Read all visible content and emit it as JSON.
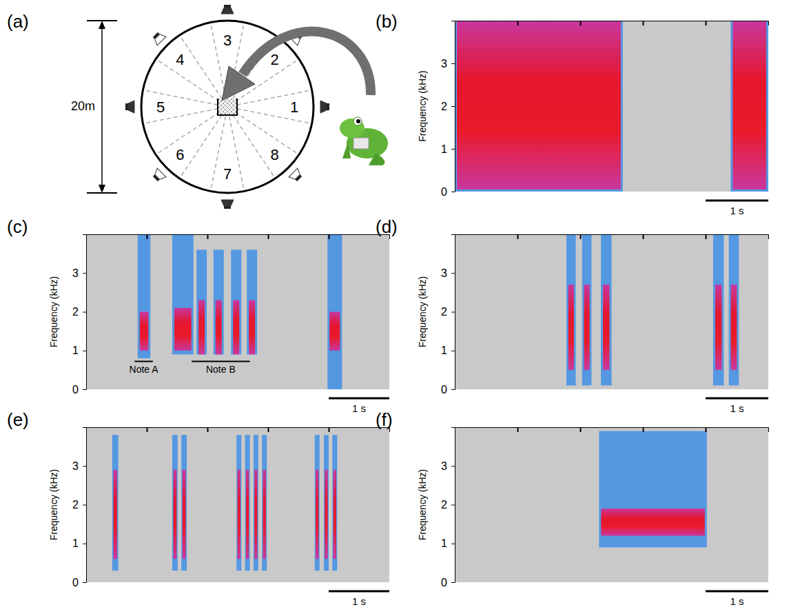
{
  "diagram": {
    "label": "(a)",
    "dimension": "20m",
    "sectors": [
      "1",
      "2",
      "3",
      "4",
      "5",
      "6",
      "7",
      "8"
    ]
  },
  "chart_data": [
    {
      "type": "spectrogram",
      "panel_label": "(b)",
      "y_label": "Frequency (kHz)",
      "xlim": [
        0,
        5
      ],
      "ylim": [
        0,
        4
      ],
      "xticks": [
        1,
        2,
        3,
        4
      ],
      "yticks": [
        0,
        1,
        2,
        3
      ],
      "tick_labels": "y",
      "scale_bar": {
        "length": 1,
        "label": "1 s"
      },
      "notes": {
        "start": [
          0,
          4.4
        ],
        "end": [
          2.68,
          5
        ],
        "low": [
          0,
          0
        ],
        "high": [
          4,
          4
        ],
        "core_low": [
          0.05,
          0.05
        ],
        "core_high": [
          4,
          4
        ]
      }
    },
    {
      "type": "spectrogram",
      "panel_label": "(c)",
      "y_label": "Frequency (kHz)",
      "xlim": [
        0,
        5
      ],
      "ylim": [
        0,
        4
      ],
      "xticks": [
        1,
        2,
        3,
        4
      ],
      "yticks": [
        0,
        1,
        2,
        3
      ],
      "tick_labels": "y",
      "scale_bar": {
        "length": 1,
        "label": "1 s"
      },
      "notes": {
        "start": [
          0.85,
          1.42,
          1.82,
          2.1,
          2.39,
          2.65,
          3.98
        ],
        "end": [
          1.06,
          1.77,
          1.99,
          2.27,
          2.56,
          2.82,
          4.22
        ],
        "low": [
          0.8,
          0.9,
          0.9,
          0.9,
          0.9,
          0.9,
          0
        ],
        "high": [
          4,
          4,
          3.6,
          3.6,
          3.6,
          3.6,
          4
        ],
        "core_low": [
          1,
          1,
          0.9,
          0.9,
          0.9,
          0.9,
          1
        ],
        "core_high": [
          2,
          2.1,
          2.3,
          2.3,
          2.3,
          2.3,
          2
        ]
      },
      "annotations": [
        {
          "text": "Note A",
          "start": 0.8,
          "end": 1.1,
          "freq": 0.72
        },
        {
          "text": "Note B",
          "start": 1.74,
          "end": 2.7,
          "freq": 0.72
        }
      ]
    },
    {
      "type": "spectrogram",
      "panel_label": "(d)",
      "y_label": "Frequency (kHz)",
      "xlim": [
        0,
        5
      ],
      "ylim": [
        0,
        4
      ],
      "xticks": [
        1,
        2,
        3,
        4
      ],
      "yticks": [
        0,
        1,
        2,
        3
      ],
      "tick_labels": "y",
      "scale_bar": {
        "length": 1,
        "label": "1 s"
      },
      "notes": {
        "start": [
          1.78,
          2.03,
          2.33,
          4.12,
          4.37
        ],
        "end": [
          1.93,
          2.18,
          2.5,
          4.29,
          4.53
        ],
        "low": [
          0.1,
          0.1,
          0.1,
          0.1,
          0.1
        ],
        "high": [
          4,
          4,
          4,
          4,
          4
        ],
        "core_low": [
          0.5,
          0.5,
          0.5,
          0.5,
          0.5
        ],
        "core_high": [
          2.7,
          2.7,
          2.7,
          2.7,
          2.7
        ]
      }
    },
    {
      "type": "spectrogram",
      "panel_label": "(e)",
      "y_label": "Frequency (kHz)",
      "xlim": [
        0,
        5
      ],
      "ylim": [
        0,
        4
      ],
      "xticks": [
        1,
        2,
        3,
        4
      ],
      "yticks": [
        0,
        1,
        2,
        3
      ],
      "tick_labels": "y",
      "scale_bar": {
        "length": 1,
        "label": "1 s"
      },
      "notes": {
        "start": [
          0.43,
          1.42,
          1.57,
          2.48,
          2.62,
          2.76,
          2.9,
          3.77,
          3.92,
          4.06
        ],
        "end": [
          0.53,
          1.51,
          1.66,
          2.56,
          2.7,
          2.84,
          2.98,
          3.85,
          4,
          4.14
        ],
        "low": [
          0.3,
          0.3,
          0.3,
          0.3,
          0.3,
          0.3,
          0.3,
          0.3,
          0.3,
          0.3
        ],
        "high": [
          3.8,
          3.8,
          3.8,
          3.8,
          3.8,
          3.8,
          3.8,
          3.8,
          3.8,
          3.8
        ],
        "core_low": [
          0.6,
          0.6,
          0.6,
          0.6,
          0.6,
          0.6,
          0.6,
          0.6,
          0.6,
          0.6
        ],
        "core_high": [
          2.9,
          2.9,
          2.9,
          2.9,
          2.9,
          2.9,
          2.9,
          2.9,
          2.9,
          2.9
        ]
      }
    },
    {
      "type": "spectrogram",
      "panel_label": "(f)",
      "y_label": "Frequency (kHz)",
      "xlim": [
        0,
        5
      ],
      "ylim": [
        0,
        4
      ],
      "xticks": [
        1,
        2,
        3,
        4
      ],
      "yticks": [
        0,
        1,
        2,
        3
      ],
      "tick_labels": "y",
      "scale_bar": {
        "length": 1,
        "label": "1 s"
      },
      "notes": {
        "start": [
          2.3
        ],
        "end": [
          4.02
        ],
        "low": [
          0.9
        ],
        "high": [
          3.9
        ],
        "core_low": [
          1.2
        ],
        "core_high": [
          1.9
        ]
      }
    }
  ]
}
